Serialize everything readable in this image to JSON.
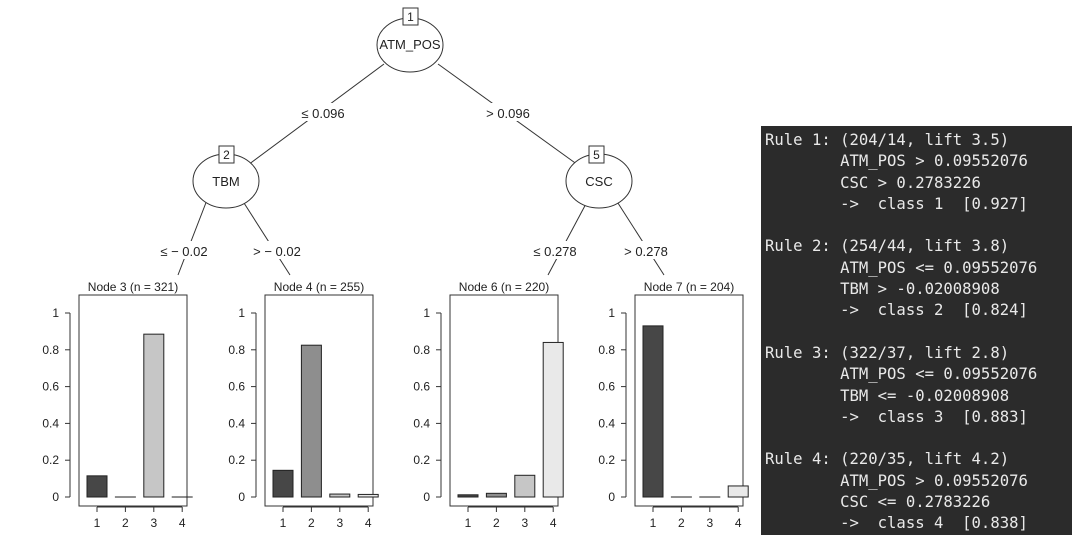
{
  "tree": {
    "root": {
      "id": "1",
      "label": "ATM_POS"
    },
    "left_child": {
      "id": "2",
      "label": "TBM"
    },
    "right_child": {
      "id": "5",
      "label": "CSC"
    },
    "edges": {
      "root_left": "≤ 0.096",
      "root_right": "> 0.096",
      "tbm_left": "≤ − 0.02",
      "tbm_right": "> − 0.02",
      "csc_left": "≤ 0.278",
      "csc_right": "> 0.278"
    },
    "colors": {
      "class1": "#474747",
      "class2": "#8e8e8e",
      "class3": "#c6c6c6",
      "class4": "#e9e9e9"
    }
  },
  "chart_data": [
    {
      "type": "bar",
      "title": "Node 3 (n = 321)",
      "categories": [
        "1",
        "2",
        "3",
        "4"
      ],
      "values": [
        0.115,
        0.0,
        0.885,
        0.0
      ],
      "ylim": [
        0,
        1
      ],
      "yticks": [
        "0",
        "0.2",
        "0.4",
        "0.6",
        "0.8",
        "1"
      ]
    },
    {
      "type": "bar",
      "title": "Node 4 (n = 255)",
      "categories": [
        "1",
        "2",
        "3",
        "4"
      ],
      "values": [
        0.145,
        0.825,
        0.016,
        0.014
      ],
      "ylim": [
        0,
        1
      ],
      "yticks": [
        "0",
        "0.2",
        "0.4",
        "0.6",
        "0.8",
        "1"
      ]
    },
    {
      "type": "bar",
      "title": "Node 6 (n = 220)",
      "categories": [
        "1",
        "2",
        "3",
        "4"
      ],
      "values": [
        0.012,
        0.02,
        0.118,
        0.84
      ],
      "ylim": [
        0,
        1
      ],
      "yticks": [
        "0",
        "0.2",
        "0.4",
        "0.6",
        "0.8",
        "1"
      ]
    },
    {
      "type": "bar",
      "title": "Node 7 (n = 204)",
      "categories": [
        "1",
        "2",
        "3",
        "4"
      ],
      "values": [
        0.93,
        0.0,
        0.0,
        0.06
      ],
      "ylim": [
        0,
        1
      ],
      "yticks": [
        "0",
        "0.2",
        "0.4",
        "0.6",
        "0.8",
        "1"
      ]
    }
  ],
  "rules": [
    {
      "lines": [
        "Rule 1: (204/14, lift 3.5)",
        "        ATM_POS > 0.09552076",
        "        CSC > 0.2783226",
        "        ->  class 1  [0.927]"
      ]
    },
    {
      "lines": [
        "Rule 2: (254/44, lift 3.8)",
        "        ATM_POS <= 0.09552076",
        "        TBM > -0.02008908",
        "        ->  class 2  [0.824]"
      ]
    },
    {
      "lines": [
        "Rule 3: (322/37, lift 2.8)",
        "        ATM_POS <= 0.09552076",
        "        TBM <= -0.02008908",
        "        ->  class 3  [0.883]"
      ]
    },
    {
      "lines": [
        "Rule 4: (220/35, lift 4.2)",
        "        ATM_POS > 0.09552076",
        "        CSC <= 0.2783226",
        "        ->  class 4  [0.838]"
      ]
    }
  ]
}
